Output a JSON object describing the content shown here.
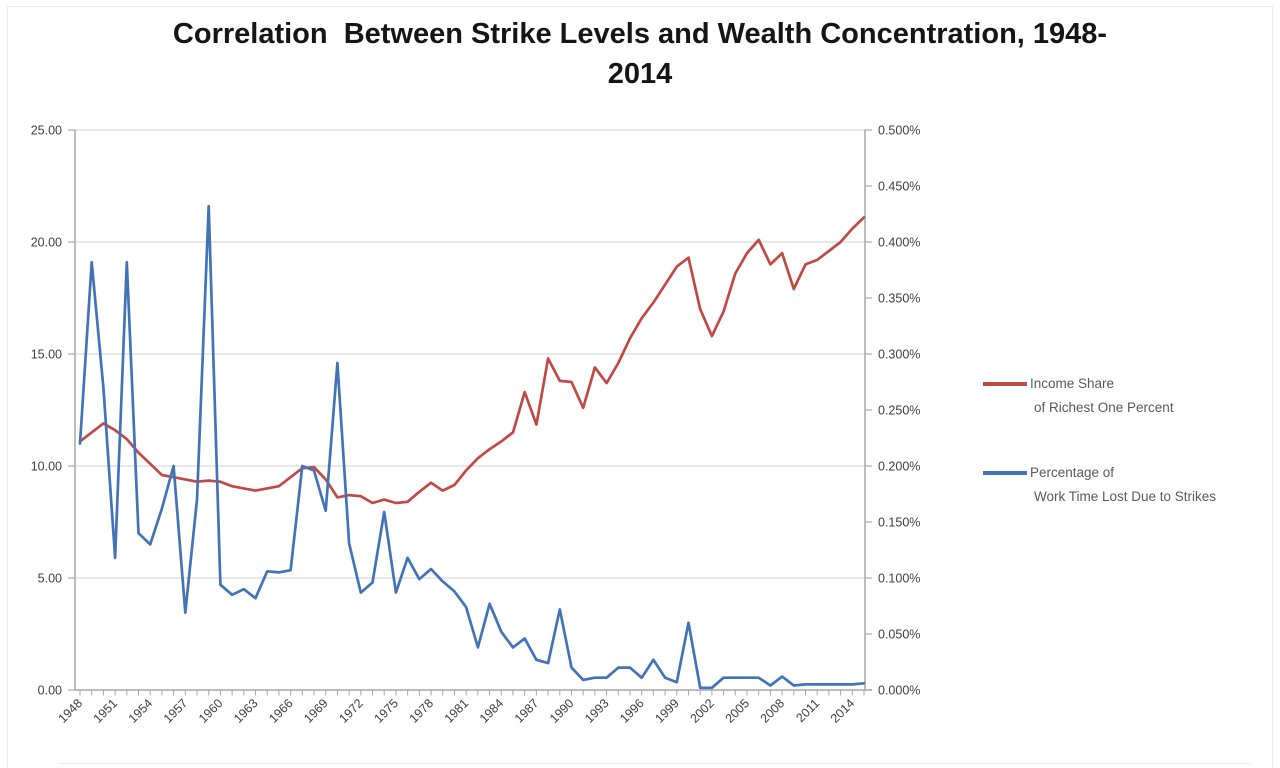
{
  "title": {
    "line1": "Correlation  Between Strike Levels and Wealth Concentration, 1948-",
    "line2": "2014"
  },
  "chart_data": {
    "type": "line",
    "title": "Correlation Between Strike Levels and Wealth Concentration, 1948-2014",
    "grid": true,
    "legend_position": "right",
    "background": "#ffffff",
    "gridline_color": "#d9d9d9",
    "axis_color": "#a6a6a6",
    "tick_label_color": "#404040",
    "x": [
      1948,
      1949,
      1950,
      1951,
      1952,
      1953,
      1954,
      1955,
      1956,
      1957,
      1958,
      1959,
      1960,
      1961,
      1962,
      1963,
      1964,
      1965,
      1966,
      1967,
      1968,
      1969,
      1970,
      1971,
      1972,
      1973,
      1974,
      1975,
      1976,
      1977,
      1978,
      1979,
      1980,
      1981,
      1982,
      1983,
      1984,
      1985,
      1986,
      1987,
      1988,
      1989,
      1990,
      1991,
      1992,
      1993,
      1994,
      1995,
      1996,
      1997,
      1998,
      1999,
      2000,
      2001,
      2002,
      2003,
      2004,
      2005,
      2006,
      2007,
      2008,
      2009,
      2010,
      2011,
      2012,
      2013,
      2014,
      2015
    ],
    "series": [
      {
        "name": "Income Share of Richest One Percent",
        "slug": "income-share-line",
        "axis": "left",
        "color": "#bf4a45",
        "values": [
          11.1,
          11.5,
          11.9,
          11.6,
          11.2,
          10.6,
          10.1,
          9.6,
          9.5,
          9.4,
          9.3,
          9.35,
          9.3,
          9.1,
          9.0,
          8.9,
          9.0,
          9.1,
          9.5,
          9.9,
          9.95,
          9.4,
          8.6,
          8.7,
          8.65,
          8.35,
          8.5,
          8.35,
          8.4,
          8.85,
          9.25,
          8.9,
          9.15,
          9.8,
          10.35,
          10.75,
          11.1,
          11.5,
          13.3,
          11.85,
          14.8,
          13.8,
          13.75,
          12.6,
          14.4,
          13.7,
          14.6,
          15.7,
          16.6,
          17.3,
          18.1,
          18.9,
          19.3,
          17.0,
          15.8,
          16.9,
          18.6,
          19.5,
          20.1,
          19.0,
          19.5,
          17.9,
          19.0,
          19.2,
          19.6,
          20.0,
          20.6,
          21.1
        ]
      },
      {
        "name": "Percentage of Work Time Lost Due to Strikes",
        "slug": "work-time-lost-strikes-line",
        "axis": "right",
        "color": "#4273b8",
        "values": [
          0.22,
          0.382,
          0.27,
          0.118,
          0.382,
          0.14,
          0.13,
          0.162,
          0.2,
          0.069,
          0.17,
          0.432,
          0.094,
          0.085,
          0.09,
          0.082,
          0.106,
          0.105,
          0.107,
          0.2,
          0.196,
          0.16,
          0.292,
          0.131,
          0.087,
          0.096,
          0.159,
          0.087,
          0.118,
          0.099,
          0.108,
          0.097,
          0.088,
          0.074,
          0.038,
          0.077,
          0.052,
          0.038,
          0.046,
          0.027,
          0.024,
          0.072,
          0.02,
          0.009,
          0.011,
          0.011,
          0.02,
          0.02,
          0.011,
          0.027,
          0.011,
          0.007,
          0.06,
          0.002,
          0.002,
          0.011,
          0.011,
          0.011,
          0.011,
          0.004,
          0.012,
          0.004,
          0.005,
          0.005,
          0.005,
          0.005,
          0.005,
          0.006
        ]
      }
    ],
    "left_axis": {
      "min": 0,
      "max": 25,
      "step": 5,
      "tick_labels": [
        "25.00",
        "20.00",
        "15.00",
        "10.00",
        "5.00",
        "0.00"
      ]
    },
    "right_axis": {
      "min": 0,
      "max": 0.5,
      "step": 0.05,
      "tick_labels": [
        "0.500%",
        "0.450%",
        "0.400%",
        "0.350%",
        "0.300%",
        "0.250%",
        "0.200%",
        "0.150%",
        "0.100%",
        "0.050%",
        "0.000%"
      ]
    },
    "x_tick_labels": [
      "1948",
      "1951",
      "1954",
      "1957",
      "1960",
      "1963",
      "1966",
      "1969",
      "1972",
      "1975",
      "1978",
      "1981",
      "1984",
      "1987",
      "1990",
      "1993",
      "1996",
      "1999",
      "2002",
      "2005",
      "2008",
      "2011",
      "2014"
    ],
    "x_label_every": 3,
    "legend": [
      {
        "line1": "Income Share",
        "line2": "of Richest One Percent"
      },
      {
        "line1": "Percentage of",
        "line2": "Work Time Lost Due to Strikes"
      }
    ]
  }
}
